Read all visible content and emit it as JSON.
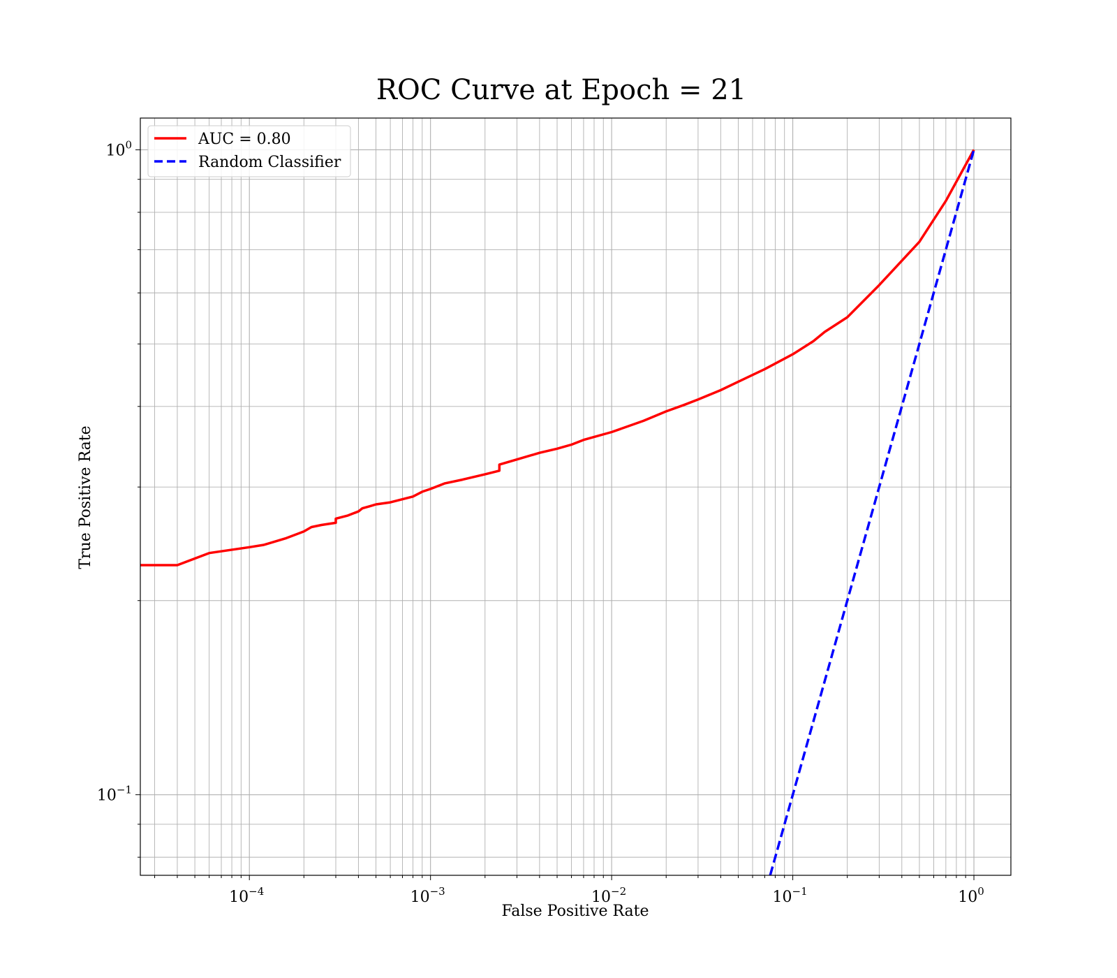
{
  "chart_data": {
    "type": "line",
    "title": "ROC Curve at Epoch = 21",
    "xlabel": "False Positive Rate",
    "ylabel": "True Positive Rate",
    "xscale": "log",
    "yscale": "log",
    "xlim": [
      2.5e-05,
      1.6
    ],
    "ylim": [
      0.075,
      1.12
    ],
    "grid": true,
    "grid_which": "both",
    "legend_position": "top-left",
    "x_ticks": [
      {
        "value": 0.0001,
        "base": "10",
        "exp": "−4"
      },
      {
        "value": 0.001,
        "base": "10",
        "exp": "−3"
      },
      {
        "value": 0.01,
        "base": "10",
        "exp": "−2"
      },
      {
        "value": 0.1,
        "base": "10",
        "exp": "−1"
      },
      {
        "value": 1,
        "base": "10",
        "exp": "0"
      }
    ],
    "y_ticks": [
      {
        "value": 0.1,
        "base": "10",
        "exp": "−1"
      },
      {
        "value": 1,
        "base": "10",
        "exp": "0"
      }
    ],
    "series": [
      {
        "name": "AUC = 0.80",
        "color": "#ff0000",
        "style": "solid",
        "x": [
          2.5e-05,
          4e-05,
          6e-05,
          0.0001,
          0.00012,
          0.00016,
          0.0002,
          0.00022,
          0.00025,
          0.0003,
          0.0003,
          0.00035,
          0.0004,
          0.00042,
          0.00046,
          0.0005,
          0.0006,
          0.0008,
          0.0009,
          0.001,
          0.0012,
          0.0015,
          0.002,
          0.0024,
          0.0024,
          0.003,
          0.004,
          0.005,
          0.006,
          0.007,
          0.01,
          0.015,
          0.02,
          0.025,
          0.03,
          0.04,
          0.05,
          0.07,
          0.1,
          0.13,
          0.15,
          0.2,
          0.3,
          0.5,
          0.7,
          1.0
        ],
        "y": [
          0.227,
          0.227,
          0.237,
          0.242,
          0.244,
          0.25,
          0.256,
          0.26,
          0.262,
          0.264,
          0.268,
          0.271,
          0.275,
          0.278,
          0.28,
          0.282,
          0.284,
          0.29,
          0.295,
          0.298,
          0.304,
          0.308,
          0.314,
          0.318,
          0.325,
          0.331,
          0.339,
          0.344,
          0.349,
          0.355,
          0.365,
          0.38,
          0.393,
          0.402,
          0.41,
          0.424,
          0.437,
          0.457,
          0.482,
          0.505,
          0.522,
          0.55,
          0.617,
          0.72,
          0.833,
          1.0
        ]
      },
      {
        "name": "Random Classifier",
        "color": "#0000ff",
        "style": "dashed",
        "x": [
          0.075,
          1.0
        ],
        "y": [
          0.075,
          1.0
        ]
      }
    ]
  }
}
